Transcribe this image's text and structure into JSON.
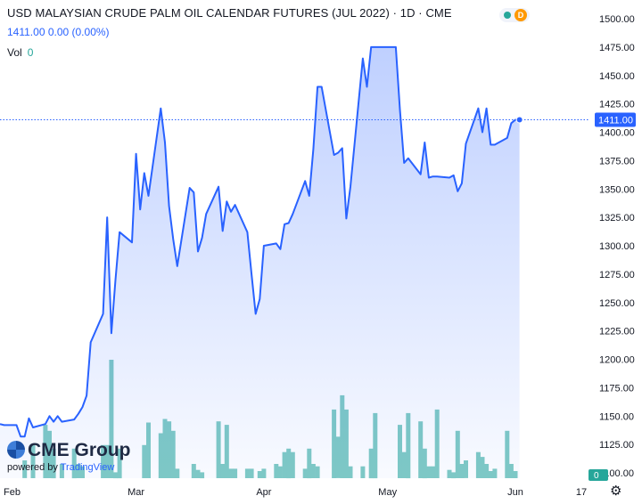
{
  "header": {
    "title": "USD MALAYSIAN CRUDE PALM OIL CALENDAR FUTURES (JUL 2022) · 1D · CME",
    "ohlc": "1411.00 0.00 (0.00%)",
    "volume_label": "Vol",
    "volume_value": "0",
    "status_d": "D"
  },
  "branding": {
    "logo": "CME Group",
    "powered_by": "powered by",
    "powered_brand": "TradingView"
  },
  "colors": {
    "line": "#2962ff",
    "fill": "#2962ff",
    "volume": "#80cbc4",
    "price_tag": "#2962ff",
    "volume_tag": "#26a69a"
  },
  "icons": {
    "settings": "gear-icon"
  },
  "chart_data": {
    "type": "area",
    "title": "USD MALAYSIAN CRUDE PALM OIL CALENDAR FUTURES (JUL 2022)",
    "ylim": [
      1100,
      1500
    ],
    "y_ticks": [
      1100,
      1125,
      1150,
      1175,
      1200,
      1225,
      1250,
      1275,
      1300,
      1325,
      1350,
      1375,
      1400,
      1425,
      1450,
      1475,
      1500
    ],
    "x_tick_labels": [
      {
        "label": "Feb",
        "date": "2022-02-01"
      },
      {
        "label": "Mar",
        "date": "2022-03-01"
      },
      {
        "label": "Apr",
        "date": "2022-04-01"
      },
      {
        "label": "May",
        "date": "2022-05-01"
      },
      {
        "label": "Jun",
        "date": "2022-06-01"
      },
      {
        "label": "17",
        "date": "2022-06-17"
      }
    ],
    "last_price": 1411.0,
    "last_price_label": "1411.00",
    "volume_label_value": "0",
    "grid": false,
    "series": [
      {
        "kind": "price",
        "points": [
          [
            "2022-01-27",
            1143
          ],
          [
            "2022-01-28",
            1142
          ],
          [
            "2022-01-31",
            1142
          ],
          [
            "2022-02-01",
            1132
          ],
          [
            "2022-02-02",
            1132
          ],
          [
            "2022-02-03",
            1148
          ],
          [
            "2022-02-04",
            1140
          ],
          [
            "2022-02-07",
            1143
          ],
          [
            "2022-02-08",
            1150
          ],
          [
            "2022-02-09",
            1145
          ],
          [
            "2022-02-10",
            1150
          ],
          [
            "2022-02-11",
            1145
          ],
          [
            "2022-02-14",
            1147
          ],
          [
            "2022-02-15",
            1152
          ],
          [
            "2022-02-16",
            1158
          ],
          [
            "2022-02-17",
            1168
          ],
          [
            "2022-02-18",
            1215
          ],
          [
            "2022-02-21",
            1240
          ],
          [
            "2022-02-22",
            1325
          ],
          [
            "2022-02-23",
            1223
          ],
          [
            "2022-02-24",
            1270
          ],
          [
            "2022-02-25",
            1312
          ],
          [
            "2022-02-28",
            1303
          ],
          [
            "2022-03-01",
            1381
          ],
          [
            "2022-03-02",
            1332
          ],
          [
            "2022-03-03",
            1364
          ],
          [
            "2022-03-04",
            1344
          ],
          [
            "2022-03-07",
            1421
          ],
          [
            "2022-03-08",
            1391
          ],
          [
            "2022-03-09",
            1335
          ],
          [
            "2022-03-10",
            1306
          ],
          [
            "2022-03-11",
            1282
          ],
          [
            "2022-03-14",
            1351
          ],
          [
            "2022-03-15",
            1347
          ],
          [
            "2022-03-16",
            1295
          ],
          [
            "2022-03-17",
            1307
          ],
          [
            "2022-03-18",
            1328
          ],
          [
            "2022-03-21",
            1352
          ],
          [
            "2022-03-22",
            1313
          ],
          [
            "2022-03-23",
            1339
          ],
          [
            "2022-03-24",
            1330
          ],
          [
            "2022-03-25",
            1336
          ],
          [
            "2022-03-28",
            1312
          ],
          [
            "2022-03-29",
            1275
          ],
          [
            "2022-03-30",
            1240
          ],
          [
            "2022-03-31",
            1253
          ],
          [
            "2022-04-01",
            1300
          ],
          [
            "2022-04-04",
            1302
          ],
          [
            "2022-04-05",
            1297
          ],
          [
            "2022-04-06",
            1319
          ],
          [
            "2022-04-07",
            1320
          ],
          [
            "2022-04-08",
            1328
          ],
          [
            "2022-04-11",
            1357
          ],
          [
            "2022-04-12",
            1344
          ],
          [
            "2022-04-13",
            1385
          ],
          [
            "2022-04-14",
            1440
          ],
          [
            "2022-04-15",
            1440
          ],
          [
            "2022-04-18",
            1380
          ],
          [
            "2022-04-19",
            1382
          ],
          [
            "2022-04-20",
            1386
          ],
          [
            "2022-04-21",
            1324
          ],
          [
            "2022-04-22",
            1352
          ],
          [
            "2022-04-25",
            1465
          ],
          [
            "2022-04-26",
            1440
          ],
          [
            "2022-04-27",
            1475
          ],
          [
            "2022-04-28",
            1475
          ],
          [
            "2022-04-29",
            1475
          ],
          [
            "2022-05-02",
            1475
          ],
          [
            "2022-05-03",
            1475
          ],
          [
            "2022-05-04",
            1420
          ],
          [
            "2022-05-05",
            1373
          ],
          [
            "2022-05-06",
            1377
          ],
          [
            "2022-05-09",
            1363
          ],
          [
            "2022-05-10",
            1391
          ],
          [
            "2022-05-11",
            1360
          ],
          [
            "2022-05-12",
            1361
          ],
          [
            "2022-05-13",
            1361
          ],
          [
            "2022-05-16",
            1360
          ],
          [
            "2022-05-17",
            1362
          ],
          [
            "2022-05-18",
            1348
          ],
          [
            "2022-05-19",
            1355
          ],
          [
            "2022-05-20",
            1390
          ],
          [
            "2022-05-23",
            1421
          ],
          [
            "2022-05-24",
            1400
          ],
          [
            "2022-05-25",
            1421
          ],
          [
            "2022-05-26",
            1389
          ],
          [
            "2022-05-27",
            1389
          ],
          [
            "2022-05-30",
            1395
          ],
          [
            "2022-05-31",
            1408
          ],
          [
            "2022-06-01",
            1411
          ],
          [
            "2022-06-02",
            1411
          ]
        ]
      },
      {
        "kind": "volume",
        "points": [
          [
            "2022-02-02",
            0.15
          ],
          [
            "2022-02-04",
            0.28
          ],
          [
            "2022-02-07",
            0.45
          ],
          [
            "2022-02-08",
            0.4
          ],
          [
            "2022-02-09",
            0.25
          ],
          [
            "2022-02-11",
            0.12
          ],
          [
            "2022-02-14",
            0.25
          ],
          [
            "2022-02-15",
            0.12
          ],
          [
            "2022-02-16",
            0.1
          ],
          [
            "2022-02-21",
            0.28
          ],
          [
            "2022-02-22",
            0.28
          ],
          [
            "2022-02-23",
            1.0
          ],
          [
            "2022-02-24",
            0.05
          ],
          [
            "2022-02-25",
            0.25
          ],
          [
            "2022-03-03",
            0.28
          ],
          [
            "2022-03-04",
            0.47
          ],
          [
            "2022-03-07",
            0.38
          ],
          [
            "2022-03-08",
            0.5
          ],
          [
            "2022-03-09",
            0.48
          ],
          [
            "2022-03-10",
            0.4
          ],
          [
            "2022-03-11",
            0.08
          ],
          [
            "2022-03-15",
            0.12
          ],
          [
            "2022-03-16",
            0.07
          ],
          [
            "2022-03-17",
            0.05
          ],
          [
            "2022-03-21",
            0.48
          ],
          [
            "2022-03-22",
            0.12
          ],
          [
            "2022-03-23",
            0.45
          ],
          [
            "2022-03-24",
            0.08
          ],
          [
            "2022-03-25",
            0.08
          ],
          [
            "2022-03-28",
            0.08
          ],
          [
            "2022-03-29",
            0.08
          ],
          [
            "2022-03-31",
            0.06
          ],
          [
            "2022-04-01",
            0.08
          ],
          [
            "2022-04-04",
            0.12
          ],
          [
            "2022-04-05",
            0.1
          ],
          [
            "2022-04-06",
            0.22
          ],
          [
            "2022-04-07",
            0.25
          ],
          [
            "2022-04-08",
            0.22
          ],
          [
            "2022-04-11",
            0.08
          ],
          [
            "2022-04-12",
            0.25
          ],
          [
            "2022-04-13",
            0.12
          ],
          [
            "2022-04-14",
            0.1
          ],
          [
            "2022-04-18",
            0.58
          ],
          [
            "2022-04-19",
            0.35
          ],
          [
            "2022-04-20",
            0.7
          ],
          [
            "2022-04-21",
            0.58
          ],
          [
            "2022-04-22",
            0.1
          ],
          [
            "2022-04-25",
            0.1
          ],
          [
            "2022-04-27",
            0.25
          ],
          [
            "2022-04-28",
            0.55
          ],
          [
            "2022-05-04",
            0.45
          ],
          [
            "2022-05-05",
            0.22
          ],
          [
            "2022-05-06",
            0.55
          ],
          [
            "2022-05-09",
            0.48
          ],
          [
            "2022-05-10",
            0.25
          ],
          [
            "2022-05-11",
            0.1
          ],
          [
            "2022-05-12",
            0.1
          ],
          [
            "2022-05-13",
            0.58
          ],
          [
            "2022-05-16",
            0.07
          ],
          [
            "2022-05-17",
            0.05
          ],
          [
            "2022-05-18",
            0.4
          ],
          [
            "2022-05-19",
            0.12
          ],
          [
            "2022-05-20",
            0.15
          ],
          [
            "2022-05-23",
            0.22
          ],
          [
            "2022-05-24",
            0.18
          ],
          [
            "2022-05-25",
            0.12
          ],
          [
            "2022-05-26",
            0.06
          ],
          [
            "2022-05-27",
            0.08
          ],
          [
            "2022-05-30",
            0.4
          ],
          [
            "2022-05-31",
            0.12
          ],
          [
            "2022-06-01",
            0.06
          ]
        ]
      }
    ]
  }
}
